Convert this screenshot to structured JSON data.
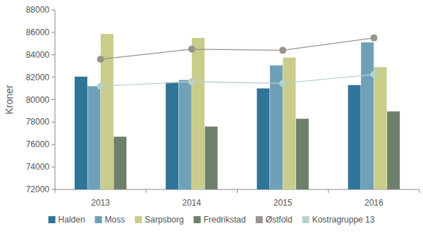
{
  "chart_data": {
    "type": "bar",
    "y_label": "Kroner",
    "categories": [
      "2013",
      "2014",
      "2015",
      "2016"
    ],
    "series": [
      {
        "name": "Halden",
        "type": "bar",
        "color": "#2f7598",
        "values": [
          82050,
          81550,
          81000,
          81300
        ]
      },
      {
        "name": "Moss",
        "type": "bar",
        "color": "#6fa0b8",
        "values": [
          81200,
          81750,
          83050,
          85100
        ]
      },
      {
        "name": "Sarpsborg",
        "type": "bar",
        "color": "#c9cc8b",
        "values": [
          85850,
          85500,
          83750,
          82900
        ]
      },
      {
        "name": "Fredrikstad",
        "type": "bar",
        "color": "#6e806a",
        "values": [
          76700,
          77600,
          78300,
          78950
        ]
      },
      {
        "name": "Østfold",
        "type": "line",
        "marker": "circle",
        "color": "#9a928c",
        "values": [
          83600,
          84500,
          84400,
          85500
        ]
      },
      {
        "name": "Kostragruppe 13",
        "type": "line",
        "marker": "circle",
        "color": "#b5d2ca",
        "values": [
          81200,
          81600,
          81450,
          82250
        ]
      }
    ],
    "ylim": [
      72000,
      88000
    ],
    "yticks": [
      72000,
      74000,
      76000,
      78000,
      80000,
      82000,
      84000,
      86000,
      88000
    ],
    "grid": false,
    "legend": "bottom"
  }
}
